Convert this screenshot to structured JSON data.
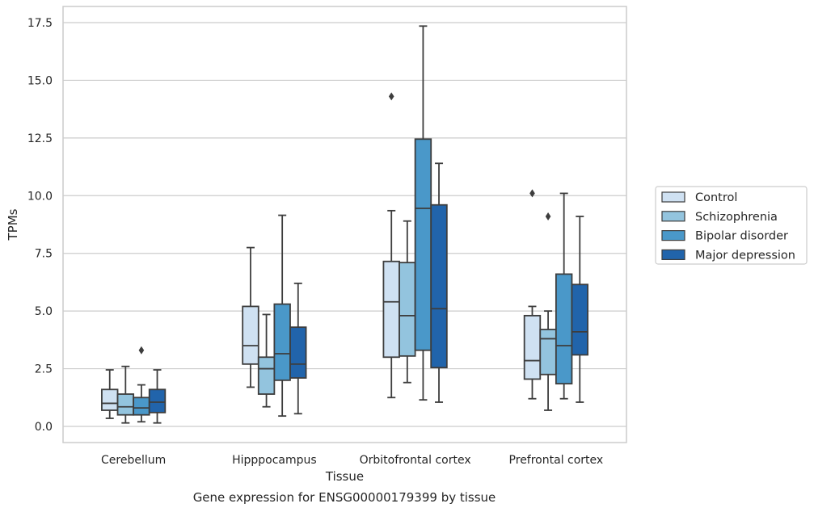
{
  "chart_data": {
    "type": "box",
    "title": "",
    "caption": "Gene expression for ENSG00000179399 by tissue",
    "xlabel": "Tissue",
    "ylabel": "TPMs",
    "ylim": [
      -0.7,
      18.2
    ],
    "yticks": [
      "0.0",
      "2.5",
      "5.0",
      "7.5",
      "10.0",
      "12.5",
      "15.0",
      "17.5"
    ],
    "grid": "horizontal",
    "legend_position": "right",
    "categories": [
      "Cerebellum",
      "Hipppocampus",
      "Orbitofrontal cortex",
      "Prefrontal cortex"
    ],
    "series": [
      {
        "name": "Control",
        "color": "#cfe1f2",
        "boxes": [
          {
            "whislo": 0.35,
            "q1": 0.7,
            "med": 1.0,
            "q3": 1.6,
            "whishi": 2.45,
            "fliers": []
          },
          {
            "whislo": 1.7,
            "q1": 2.7,
            "med": 3.5,
            "q3": 5.2,
            "whishi": 7.75,
            "fliers": []
          },
          {
            "whislo": 1.25,
            "q1": 3.0,
            "med": 5.4,
            "q3": 7.15,
            "whishi": 9.35,
            "fliers": [
              14.3
            ]
          },
          {
            "whislo": 1.2,
            "q1": 2.05,
            "med": 2.85,
            "q3": 4.8,
            "whishi": 5.2,
            "fliers": [
              10.1
            ]
          }
        ]
      },
      {
        "name": "Schizophrenia",
        "color": "#93c4de",
        "boxes": [
          {
            "whislo": 0.15,
            "q1": 0.5,
            "med": 0.85,
            "q3": 1.4,
            "whishi": 2.6,
            "fliers": []
          },
          {
            "whislo": 0.85,
            "q1": 1.4,
            "med": 2.5,
            "q3": 3.0,
            "whishi": 4.85,
            "fliers": []
          },
          {
            "whislo": 1.9,
            "q1": 3.05,
            "med": 4.8,
            "q3": 7.1,
            "whishi": 8.9,
            "fliers": []
          },
          {
            "whislo": 0.7,
            "q1": 2.25,
            "med": 3.8,
            "q3": 4.2,
            "whishi": 5.0,
            "fliers": [
              9.1
            ]
          }
        ]
      },
      {
        "name": "Bipolar disorder",
        "color": "#4a98c9",
        "boxes": [
          {
            "whislo": 0.2,
            "q1": 0.5,
            "med": 0.8,
            "q3": 1.25,
            "whishi": 1.8,
            "fliers": [
              3.3
            ]
          },
          {
            "whislo": 0.45,
            "q1": 2.0,
            "med": 3.15,
            "q3": 5.3,
            "whishi": 9.15,
            "fliers": []
          },
          {
            "whislo": 1.15,
            "q1": 3.3,
            "med": 9.45,
            "q3": 12.45,
            "whishi": 17.35,
            "fliers": []
          },
          {
            "whislo": 1.2,
            "q1": 1.85,
            "med": 3.5,
            "q3": 6.6,
            "whishi": 10.1,
            "fliers": []
          }
        ]
      },
      {
        "name": "Major depression",
        "color": "#2164ab",
        "boxes": [
          {
            "whislo": 0.15,
            "q1": 0.6,
            "med": 1.05,
            "q3": 1.6,
            "whishi": 2.45,
            "fliers": []
          },
          {
            "whislo": 0.55,
            "q1": 2.1,
            "med": 2.7,
            "q3": 4.3,
            "whishi": 6.2,
            "fliers": []
          },
          {
            "whislo": 1.05,
            "q1": 2.55,
            "med": 5.1,
            "q3": 9.6,
            "whishi": 11.4,
            "fliers": []
          },
          {
            "whislo": 1.05,
            "q1": 3.1,
            "med": 4.1,
            "q3": 6.15,
            "whishi": 9.1,
            "fliers": []
          }
        ]
      }
    ]
  },
  "colors": {
    "grid": "#cccccc",
    "axes_edge": "#cccccc",
    "box_edge": "#3d3d3d",
    "text": "#262626",
    "legend_edge": "#cccccc"
  }
}
